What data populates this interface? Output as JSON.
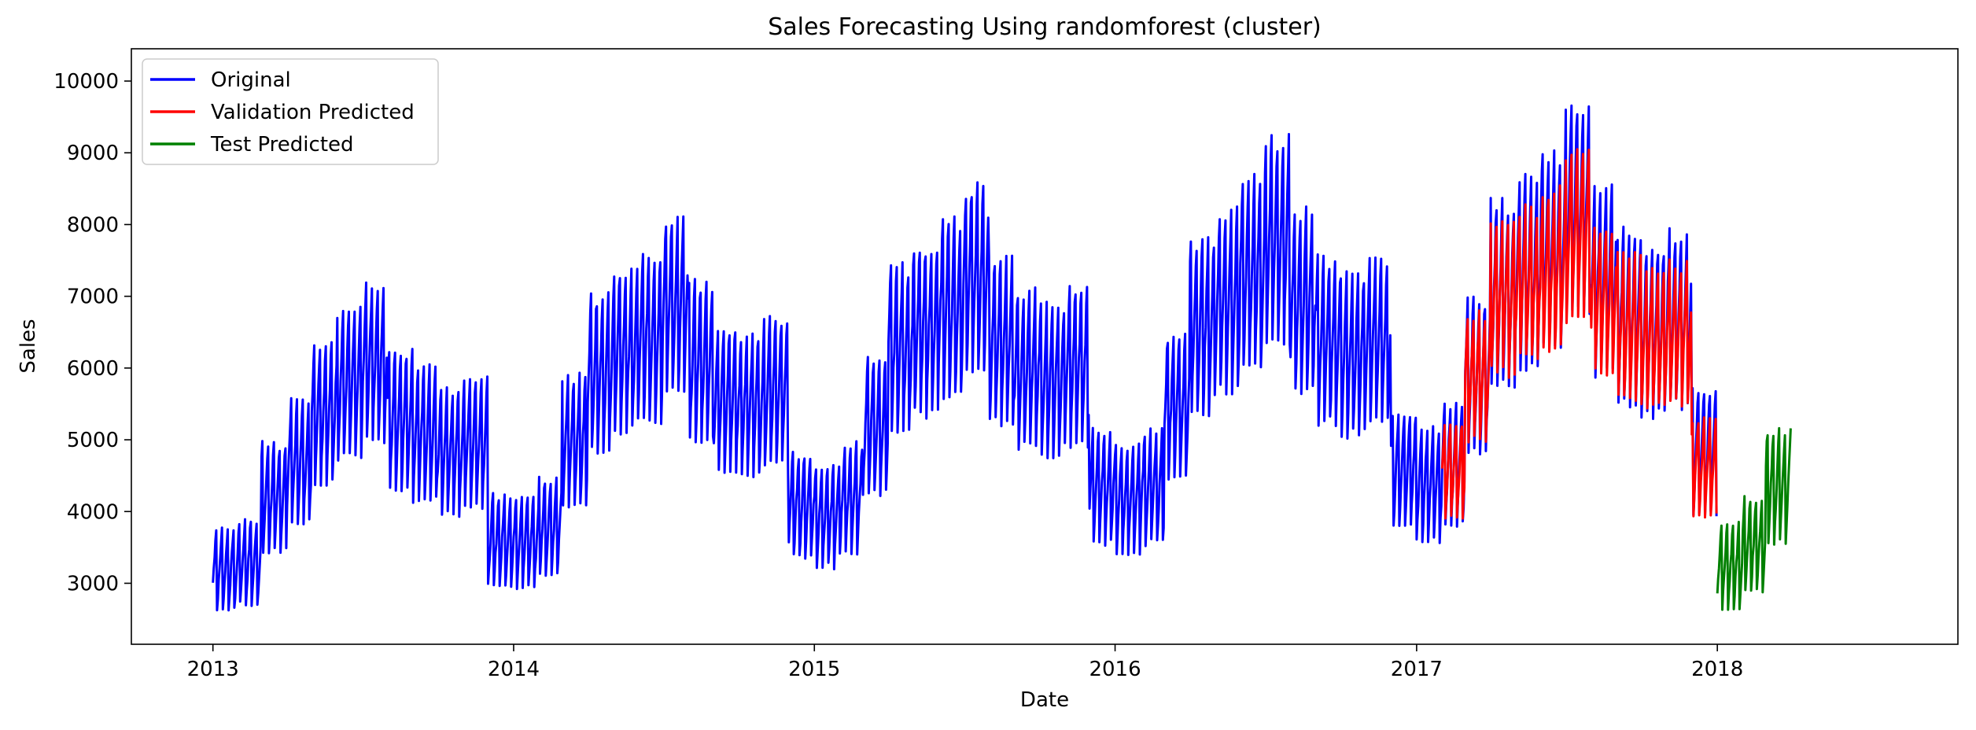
{
  "chart_data": {
    "type": "line",
    "title": "Sales Forecasting Using randomforest (cluster)",
    "xlabel": "Date",
    "ylabel": "Sales",
    "xlim": [
      "2012-09-24",
      "2018-10-20"
    ],
    "ylim": [
      2150,
      10450
    ],
    "xticks": [
      "2013-01-01",
      "2014-01-01",
      "2015-01-01",
      "2016-01-01",
      "2017-01-01",
      "2018-01-01"
    ],
    "xtick_labels": [
      "2013",
      "2014",
      "2015",
      "2016",
      "2017",
      "2018"
    ],
    "yticks": [
      3000,
      4000,
      5000,
      6000,
      7000,
      8000,
      9000,
      10000
    ],
    "ytick_labels": [
      "3000",
      "4000",
      "5000",
      "6000",
      "7000",
      "8000",
      "9000",
      "10000"
    ],
    "grid": false,
    "legend_position": "top-left",
    "series": [
      {
        "name": "Original",
        "color": "#0000ff",
        "start": "2013-01-01",
        "end": "2017-12-31",
        "weekly_cycle": true,
        "weekly_pattern": [
          0.82,
          0.88,
          0.94,
          1.0,
          1.06,
          1.13,
          1.17
        ],
        "monthly_level": [
          {
            "month": "2013-01",
            "level": 3200
          },
          {
            "month": "2013-02",
            "level": 3300
          },
          {
            "month": "2013-03",
            "level": 4200
          },
          {
            "month": "2013-04",
            "level": 4700
          },
          {
            "month": "2013-05",
            "level": 5400
          },
          {
            "month": "2013-06",
            "level": 5800
          },
          {
            "month": "2013-07",
            "level": 6100
          },
          {
            "month": "2013-08",
            "level": 5300
          },
          {
            "month": "2013-09",
            "level": 5100
          },
          {
            "month": "2013-10",
            "level": 4850
          },
          {
            "month": "2013-11",
            "level": 5000
          },
          {
            "month": "2013-12",
            "level": 3600
          },
          {
            "month": "2014-01",
            "level": 3600
          },
          {
            "month": "2014-02",
            "level": 3800
          },
          {
            "month": "2014-03",
            "level": 5000
          },
          {
            "month": "2014-04",
            "level": 5950
          },
          {
            "month": "2014-05",
            "level": 6250
          },
          {
            "month": "2014-06",
            "level": 6450
          },
          {
            "month": "2014-07",
            "level": 6900
          },
          {
            "month": "2014-08",
            "level": 6100
          },
          {
            "month": "2014-09",
            "level": 5600
          },
          {
            "month": "2014-10",
            "level": 5500
          },
          {
            "month": "2014-11",
            "level": 5700
          },
          {
            "month": "2014-12",
            "level": 4100
          },
          {
            "month": "2015-01",
            "level": 3950
          },
          {
            "month": "2015-02",
            "level": 4200
          },
          {
            "month": "2015-03",
            "level": 5200
          },
          {
            "month": "2015-04",
            "level": 6300
          },
          {
            "month": "2015-05",
            "level": 6550
          },
          {
            "month": "2015-06",
            "level": 6850
          },
          {
            "month": "2015-07",
            "level": 7250
          },
          {
            "month": "2015-08",
            "level": 6400
          },
          {
            "month": "2015-09",
            "level": 6000
          },
          {
            "month": "2015-10",
            "level": 5850
          },
          {
            "month": "2015-11",
            "level": 6050
          },
          {
            "month": "2015-12",
            "level": 4350
          },
          {
            "month": "2016-01",
            "level": 4200
          },
          {
            "month": "2016-02",
            "level": 4350
          },
          {
            "month": "2016-03",
            "level": 5500
          },
          {
            "month": "2016-04",
            "level": 6600
          },
          {
            "month": "2016-05",
            "level": 6950
          },
          {
            "month": "2016-06",
            "level": 7350
          },
          {
            "month": "2016-07",
            "level": 7800
          },
          {
            "month": "2016-08",
            "level": 6950
          },
          {
            "month": "2016-09",
            "level": 6400
          },
          {
            "month": "2016-10",
            "level": 6200
          },
          {
            "month": "2016-11",
            "level": 6400
          },
          {
            "month": "2016-12",
            "level": 4600
          },
          {
            "month": "2017-01",
            "level": 4400
          },
          {
            "month": "2017-02",
            "level": 4650
          },
          {
            "month": "2017-03",
            "level": 5900
          },
          {
            "month": "2017-04",
            "level": 7050
          },
          {
            "month": "2017-05",
            "level": 7350
          },
          {
            "month": "2017-06",
            "level": 7650
          },
          {
            "month": "2017-07",
            "level": 8250
          },
          {
            "month": "2017-08",
            "level": 7250
          },
          {
            "month": "2017-09",
            "level": 6750
          },
          {
            "month": "2017-10",
            "level": 6550
          },
          {
            "month": "2017-11",
            "level": 6700
          },
          {
            "month": "2017-12",
            "level": 4850
          }
        ]
      },
      {
        "name": "Validation Predicted",
        "color": "#ff0000",
        "start": "2017-02-01",
        "end": "2017-12-31",
        "weekly_cycle": true,
        "weekly_pattern": [
          0.85,
          0.9,
          0.95,
          1.0,
          1.05,
          1.1,
          1.14
        ],
        "monthly_level": [
          {
            "month": "2017-02",
            "level": 4600
          },
          {
            "month": "2017-03",
            "level": 5900
          },
          {
            "month": "2017-04",
            "level": 7000
          },
          {
            "month": "2017-05",
            "level": 7200
          },
          {
            "month": "2017-06",
            "level": 7400
          },
          {
            "month": "2017-07",
            "level": 7900
          },
          {
            "month": "2017-08",
            "level": 7000
          },
          {
            "month": "2017-09",
            "level": 6600
          },
          {
            "month": "2017-10",
            "level": 6400
          },
          {
            "month": "2017-11",
            "level": 6500
          },
          {
            "month": "2017-12",
            "level": 4650
          }
        ]
      },
      {
        "name": "Test Predicted",
        "color": "#008000",
        "start": "2018-01-01",
        "end": "2018-03-31",
        "weekly_cycle": true,
        "weekly_pattern": [
          0.82,
          0.88,
          0.94,
          1.0,
          1.06,
          1.13,
          1.17
        ],
        "monthly_level": [
          {
            "month": "2018-01",
            "level": 3250
          },
          {
            "month": "2018-02",
            "level": 3550
          },
          {
            "month": "2018-03",
            "level": 4350
          }
        ]
      }
    ]
  }
}
